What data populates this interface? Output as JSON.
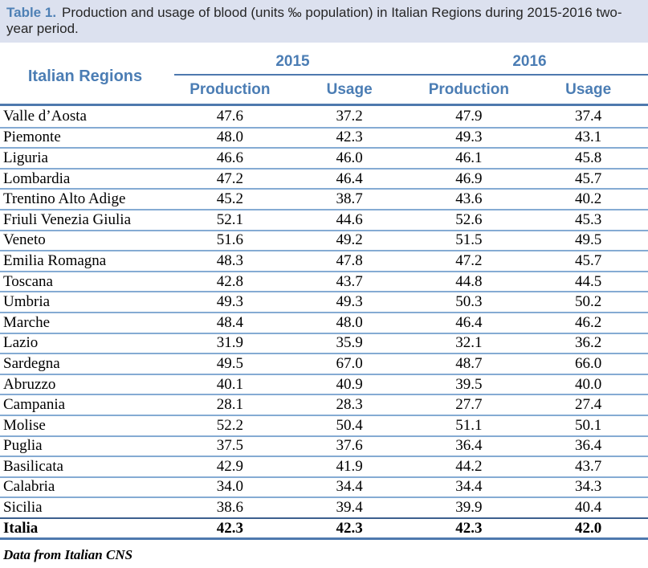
{
  "caption": {
    "label": "Table 1.",
    "text": "Production and usage of blood (units ‰ population) in Italian Regions during 2015-2016 two-year period."
  },
  "table": {
    "region_column_header": "Italian Regions",
    "year_groups": [
      {
        "label": "2015"
      },
      {
        "label": "2016"
      }
    ],
    "sub_headers": [
      "Production",
      "Usage",
      "Production",
      "Usage"
    ],
    "rows": [
      {
        "region": "Valle d’Aosta",
        "values": [
          "47.6",
          "37.2",
          "47.9",
          "37.4"
        ]
      },
      {
        "region": "Piemonte",
        "values": [
          "48.0",
          "42.3",
          "49.3",
          "43.1"
        ]
      },
      {
        "region": "Liguria",
        "values": [
          "46.6",
          "46.0",
          "46.1",
          "45.8"
        ]
      },
      {
        "region": "Lombardia",
        "values": [
          "47.2",
          "46.4",
          "46.9",
          "45.7"
        ]
      },
      {
        "region": "Trentino Alto Adige",
        "values": [
          "45.2",
          "38.7",
          "43.6",
          "40.2"
        ]
      },
      {
        "region": "Friuli Venezia Giulia",
        "values": [
          "52.1",
          "44.6",
          "52.6",
          "45.3"
        ]
      },
      {
        "region": "Veneto",
        "values": [
          "51.6",
          "49.2",
          "51.5",
          "49.5"
        ]
      },
      {
        "region": "Emilia Romagna",
        "values": [
          "48.3",
          "47.8",
          "47.2",
          "45.7"
        ]
      },
      {
        "region": "Toscana",
        "values": [
          "42.8",
          "43.7",
          "44.8",
          "44.5"
        ]
      },
      {
        "region": "Umbria",
        "values": [
          "49.3",
          "49.3",
          "50.3",
          "50.2"
        ]
      },
      {
        "region": "Marche",
        "values": [
          "48.4",
          "48.0",
          "46.4",
          "46.2"
        ]
      },
      {
        "region": "Lazio",
        "values": [
          "31.9",
          "35.9",
          "32.1",
          "36.2"
        ]
      },
      {
        "region": "Sardegna",
        "values": [
          "49.5",
          "67.0",
          "48.7",
          "66.0"
        ]
      },
      {
        "region": "Abruzzo",
        "values": [
          "40.1",
          "40.9",
          "39.5",
          "40.0"
        ]
      },
      {
        "region": "Campania",
        "values": [
          "28.1",
          "28.3",
          "27.7",
          "27.4"
        ]
      },
      {
        "region": "Molise",
        "values": [
          "52.2",
          "50.4",
          "51.1",
          "50.1"
        ]
      },
      {
        "region": "Puglia",
        "values": [
          "37.5",
          "37.6",
          "36.4",
          "36.4"
        ]
      },
      {
        "region": "Basilicata",
        "values": [
          "42.9",
          "41.9",
          "44.2",
          "43.7"
        ]
      },
      {
        "region": "Calabria",
        "values": [
          "34.0",
          "34.4",
          "34.4",
          "34.3"
        ]
      },
      {
        "region": "Sicilia",
        "values": [
          "38.6",
          "39.4",
          "39.9",
          "40.4"
        ]
      }
    ],
    "total_row": {
      "region": "Italia",
      "values": [
        "42.3",
        "42.3",
        "42.3",
        "42.0"
      ],
      "bold": true
    }
  },
  "footer": {
    "source_note": "Data from Italian CNS"
  },
  "colors": {
    "caption_bg": "#dce1ef",
    "accent_blue": "#4b7db4",
    "rule_dark": "#4e79ae",
    "rule_light": "#85abd3",
    "rule_total_top": "#3c5f8e",
    "text": "#000000"
  }
}
